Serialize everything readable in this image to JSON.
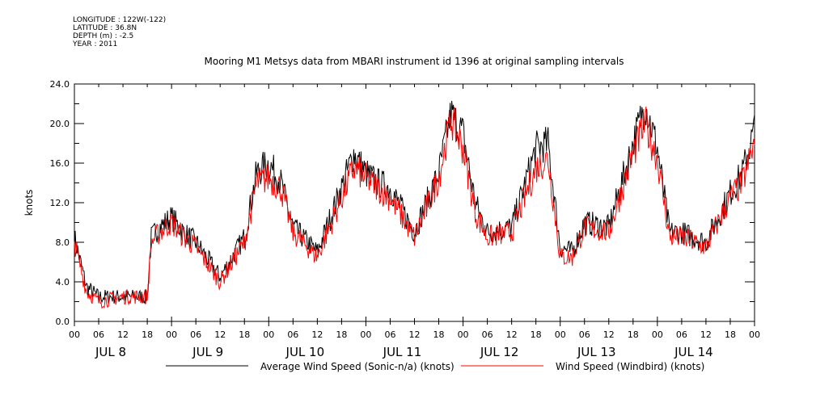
{
  "header_info": {
    "longitude": "LONGITUDE : 122W(-122)",
    "latitude": "LATITUDE : 36.8N",
    "depth": "DEPTH (m) : -2.5",
    "year": "YEAR : 2011"
  },
  "chart_data": {
    "type": "line",
    "title": "Mooring M1 Metsys data from MBARI instrument id 1396 at original sampling intervals",
    "ylabel": "knots",
    "xlabel": "",
    "ylim": [
      0,
      24
    ],
    "yticks": [
      "0.0",
      "4.0",
      "8.0",
      "12.0",
      "16.0",
      "20.0",
      "24.0"
    ],
    "xlim_hours": [
      0,
      168
    ],
    "hour_tick_labels": [
      "00",
      "06",
      "12",
      "18",
      "00",
      "06",
      "12",
      "18",
      "00",
      "06",
      "12",
      "18",
      "00",
      "06",
      "12",
      "18",
      "00",
      "06",
      "12",
      "18",
      "00",
      "06",
      "12",
      "18",
      "00",
      "06",
      "12",
      "18",
      "00"
    ],
    "day_labels": [
      "JUL  8",
      "JUL  9",
      "JUL 10",
      "JUL 11",
      "JUL 12",
      "JUL 13",
      "JUL 14"
    ],
    "grid": false,
    "legend_position": "bottom",
    "x_hours_key": [
      0,
      3,
      6,
      12,
      18,
      19,
      21,
      24,
      27,
      30,
      36,
      42,
      45,
      48,
      51,
      54,
      60,
      66,
      69,
      72,
      75,
      78,
      84,
      90,
      93,
      96,
      99,
      102,
      108,
      114,
      117,
      120,
      123,
      126,
      132,
      138,
      141,
      144,
      147,
      150,
      156,
      162,
      165,
      168
    ],
    "series": [
      {
        "name": "Average Wind Speed (Sonic-n/a) (knots)",
        "color": "#000000",
        "values": [
          8.5,
          3.5,
          2.5,
          2.5,
          2.5,
          8.5,
          9.5,
          10.5,
          9.0,
          8.0,
          4.5,
          8.5,
          15.0,
          16.0,
          14.0,
          9.5,
          7.0,
          13.5,
          17.0,
          15.0,
          14.0,
          13.5,
          9.0,
          15.0,
          21.0,
          19.0,
          12.0,
          9.0,
          9.5,
          17.5,
          18.0,
          7.5,
          7.0,
          10.0,
          9.5,
          18.0,
          22.0,
          17.5,
          9.0,
          9.0,
          8.0,
          13.0,
          15.0,
          19.5
        ]
      },
      {
        "name": "Wind Speed (Windbird) (knots)",
        "color": "#ff0000",
        "values": [
          8.0,
          3.0,
          2.0,
          2.5,
          2.5,
          8.0,
          9.0,
          10.0,
          8.5,
          7.5,
          4.0,
          8.0,
          14.0,
          14.5,
          13.5,
          9.0,
          6.5,
          12.5,
          15.5,
          14.5,
          13.5,
          12.5,
          8.5,
          14.5,
          20.5,
          17.5,
          11.0,
          8.5,
          9.0,
          15.5,
          16.5,
          6.5,
          6.5,
          9.5,
          9.0,
          17.0,
          20.0,
          16.5,
          8.5,
          8.5,
          7.5,
          12.5,
          14.0,
          18.0
        ]
      }
    ]
  }
}
